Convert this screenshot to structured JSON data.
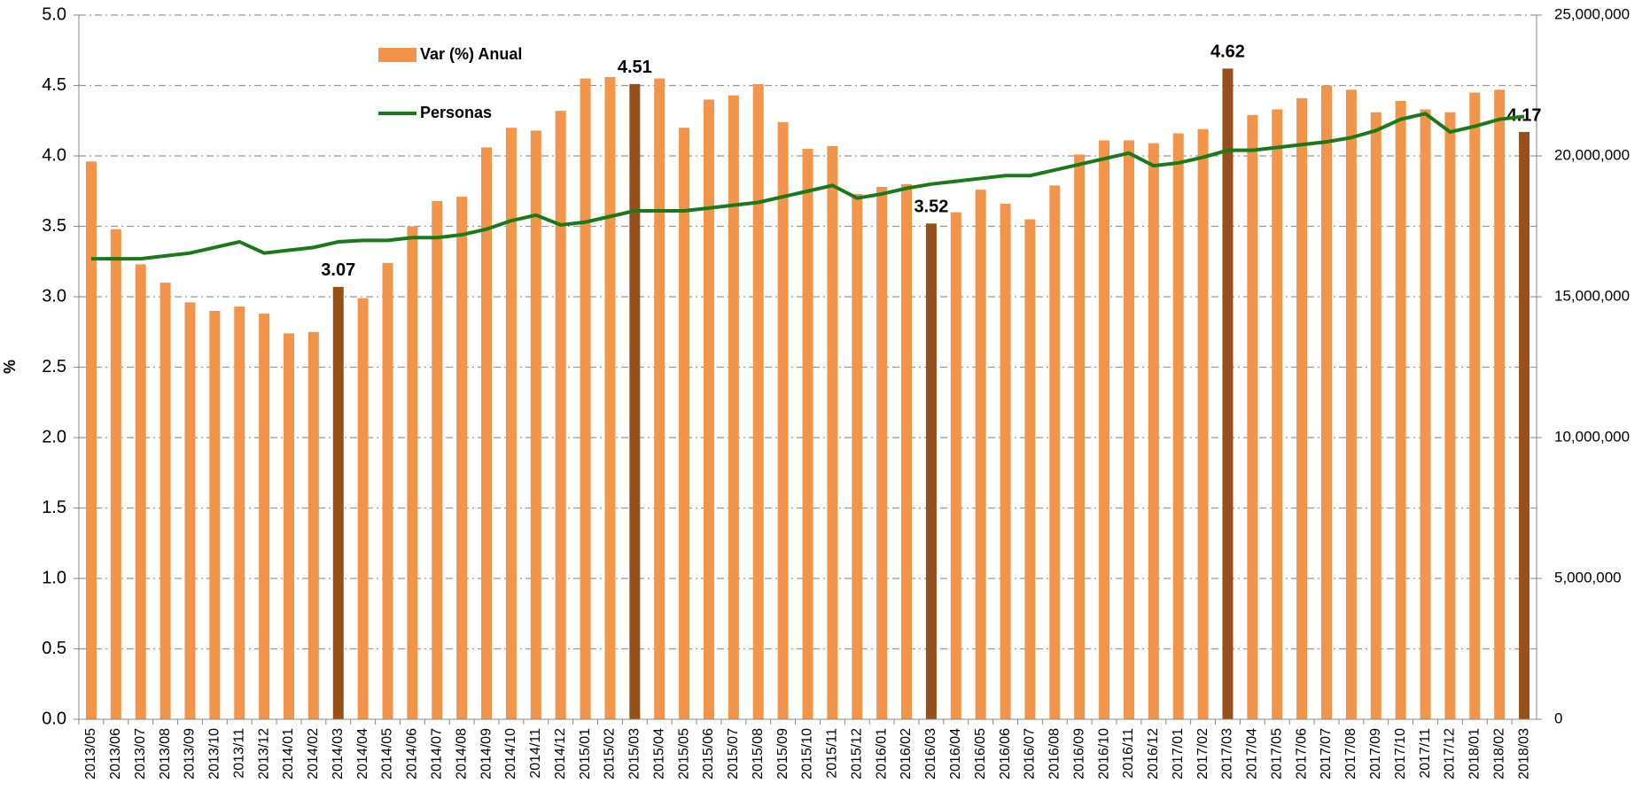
{
  "chart_data": {
    "type": "bar_line",
    "y_label": "%",
    "categories": [
      "2013/05",
      "2013/06",
      "2013/07",
      "2013/08",
      "2013/09",
      "2013/10",
      "2013/11",
      "2013/12",
      "2014/01",
      "2014/02",
      "2014/03",
      "2014/04",
      "2014/05",
      "2014/06",
      "2014/07",
      "2014/08",
      "2014/09",
      "2014/10",
      "2014/11",
      "2014/12",
      "2015/01",
      "2015/02",
      "2015/03",
      "2015/04",
      "2015/05",
      "2015/06",
      "2015/07",
      "2015/08",
      "2015/09",
      "2015/10",
      "2015/11",
      "2015/12",
      "2016/01",
      "2016/02",
      "2016/03",
      "2016/04",
      "2016/05",
      "2016/06",
      "2016/07",
      "2016/08",
      "2016/09",
      "2016/10",
      "2016/11",
      "2016/12",
      "2017/01",
      "2017/02",
      "2017/03",
      "2017/04",
      "2017/05",
      "2017/06",
      "2017/07",
      "2017/08",
      "2017/09",
      "2017/10",
      "2017/11",
      "2017/12",
      "2018/01",
      "2018/02",
      "2018/03"
    ],
    "series": [
      {
        "name": "Var (%) Anual",
        "type": "bar",
        "color": "#f2954a",
        "colors": [
          "#f2954a",
          "#f2954a",
          "#f2954a",
          "#f2954a",
          "#f2954a",
          "#f2954a",
          "#f2954a",
          "#f2954a",
          "#f2954a",
          "#f2954a",
          "#98501a",
          "#f2954a",
          "#f2954a",
          "#f2954a",
          "#f2954a",
          "#f2954a",
          "#f2954a",
          "#f2954a",
          "#f2954a",
          "#f2954a",
          "#f2954a",
          "#f2954a",
          "#98501a",
          "#f2954a",
          "#f2954a",
          "#f2954a",
          "#f2954a",
          "#f2954a",
          "#f2954a",
          "#f2954a",
          "#f2954a",
          "#f2954a",
          "#f2954a",
          "#f2954a",
          "#98501a",
          "#f2954a",
          "#f2954a",
          "#f2954a",
          "#f2954a",
          "#f2954a",
          "#f2954a",
          "#f2954a",
          "#f2954a",
          "#f2954a",
          "#f2954a",
          "#f2954a",
          "#98501a",
          "#f2954a",
          "#f2954a",
          "#f2954a",
          "#f2954a",
          "#f2954a",
          "#f2954a",
          "#f2954a",
          "#f2954a",
          "#f2954a",
          "#f2954a",
          "#f2954a",
          "#98501a"
        ],
        "values": [
          3.96,
          3.48,
          3.23,
          3.1,
          2.96,
          2.9,
          2.93,
          2.88,
          2.74,
          2.75,
          3.07,
          2.99,
          3.24,
          3.5,
          3.68,
          3.71,
          4.06,
          4.2,
          4.18,
          4.32,
          4.55,
          4.56,
          4.51,
          4.55,
          4.2,
          4.4,
          4.43,
          4.51,
          4.24,
          4.05,
          4.07,
          3.73,
          3.78,
          3.8,
          3.52,
          3.6,
          3.76,
          3.66,
          3.55,
          3.79,
          4.01,
          4.11,
          4.11,
          4.09,
          4.16,
          4.19,
          4.62,
          4.29,
          4.33,
          4.41,
          4.5,
          4.47,
          4.31,
          4.39,
          4.33,
          4.31,
          4.45,
          4.47,
          4.17
        ],
        "value_labels": [
          null,
          null,
          null,
          null,
          null,
          null,
          null,
          null,
          null,
          null,
          "3.07",
          null,
          null,
          null,
          null,
          null,
          null,
          null,
          null,
          null,
          null,
          null,
          "4.51",
          null,
          null,
          null,
          null,
          null,
          null,
          null,
          null,
          null,
          null,
          null,
          "3.52",
          null,
          null,
          null,
          null,
          null,
          null,
          null,
          null,
          null,
          null,
          null,
          "4.62",
          null,
          null,
          null,
          null,
          null,
          null,
          null,
          null,
          null,
          null,
          null,
          "4.17"
        ]
      },
      {
        "name": "Personas",
        "type": "line",
        "axis": "y2",
        "color": "#1a7a1a",
        "values": [
          16350000,
          16350000,
          16350000,
          16450000,
          16550000,
          16750000,
          16950000,
          16550000,
          16650000,
          16750000,
          16950000,
          17000000,
          17000000,
          17100000,
          17100000,
          17200000,
          17400000,
          17700000,
          17900000,
          17550000,
          17650000,
          17850000,
          18050000,
          18050000,
          18050000,
          18150000,
          18250000,
          18350000,
          18550000,
          18750000,
          18950000,
          18500000,
          18650000,
          18850000,
          19000000,
          19100000,
          19200000,
          19300000,
          19300000,
          19500000,
          19700000,
          19900000,
          20100000,
          19650000,
          19750000,
          19950000,
          20200000,
          20200000,
          20300000,
          20400000,
          20500000,
          20650000,
          20900000,
          21300000,
          21500000,
          20850000,
          21050000,
          21300000,
          21400000
        ]
      }
    ],
    "ylim": [
      0,
      5
    ],
    "yticks": [
      {
        "value": 0,
        "label": "0.0"
      },
      0.5,
      {
        "value": 1,
        "label": "1.0"
      },
      1.5,
      {
        "value": 2,
        "label": "2.0"
      },
      2.5,
      {
        "value": 3,
        "label": "3.0"
      },
      3.5,
      {
        "value": 4,
        "label": "4.0"
      },
      4.5,
      {
        "value": 5,
        "label": "5.0"
      }
    ],
    "y2lim": [
      0,
      25000000
    ],
    "y2ticks": [
      0,
      {
        "value": 5000000,
        "label": "5,000,000"
      },
      {
        "value": 10000000,
        "label": "10,000,000"
      },
      {
        "value": 15000000,
        "label": "15,000,000"
      },
      {
        "value": 20000000,
        "label": "20,000,000"
      },
      {
        "value": 25000000,
        "label": "25,000,000"
      }
    ],
    "grid": true,
    "legend": "top-left"
  }
}
